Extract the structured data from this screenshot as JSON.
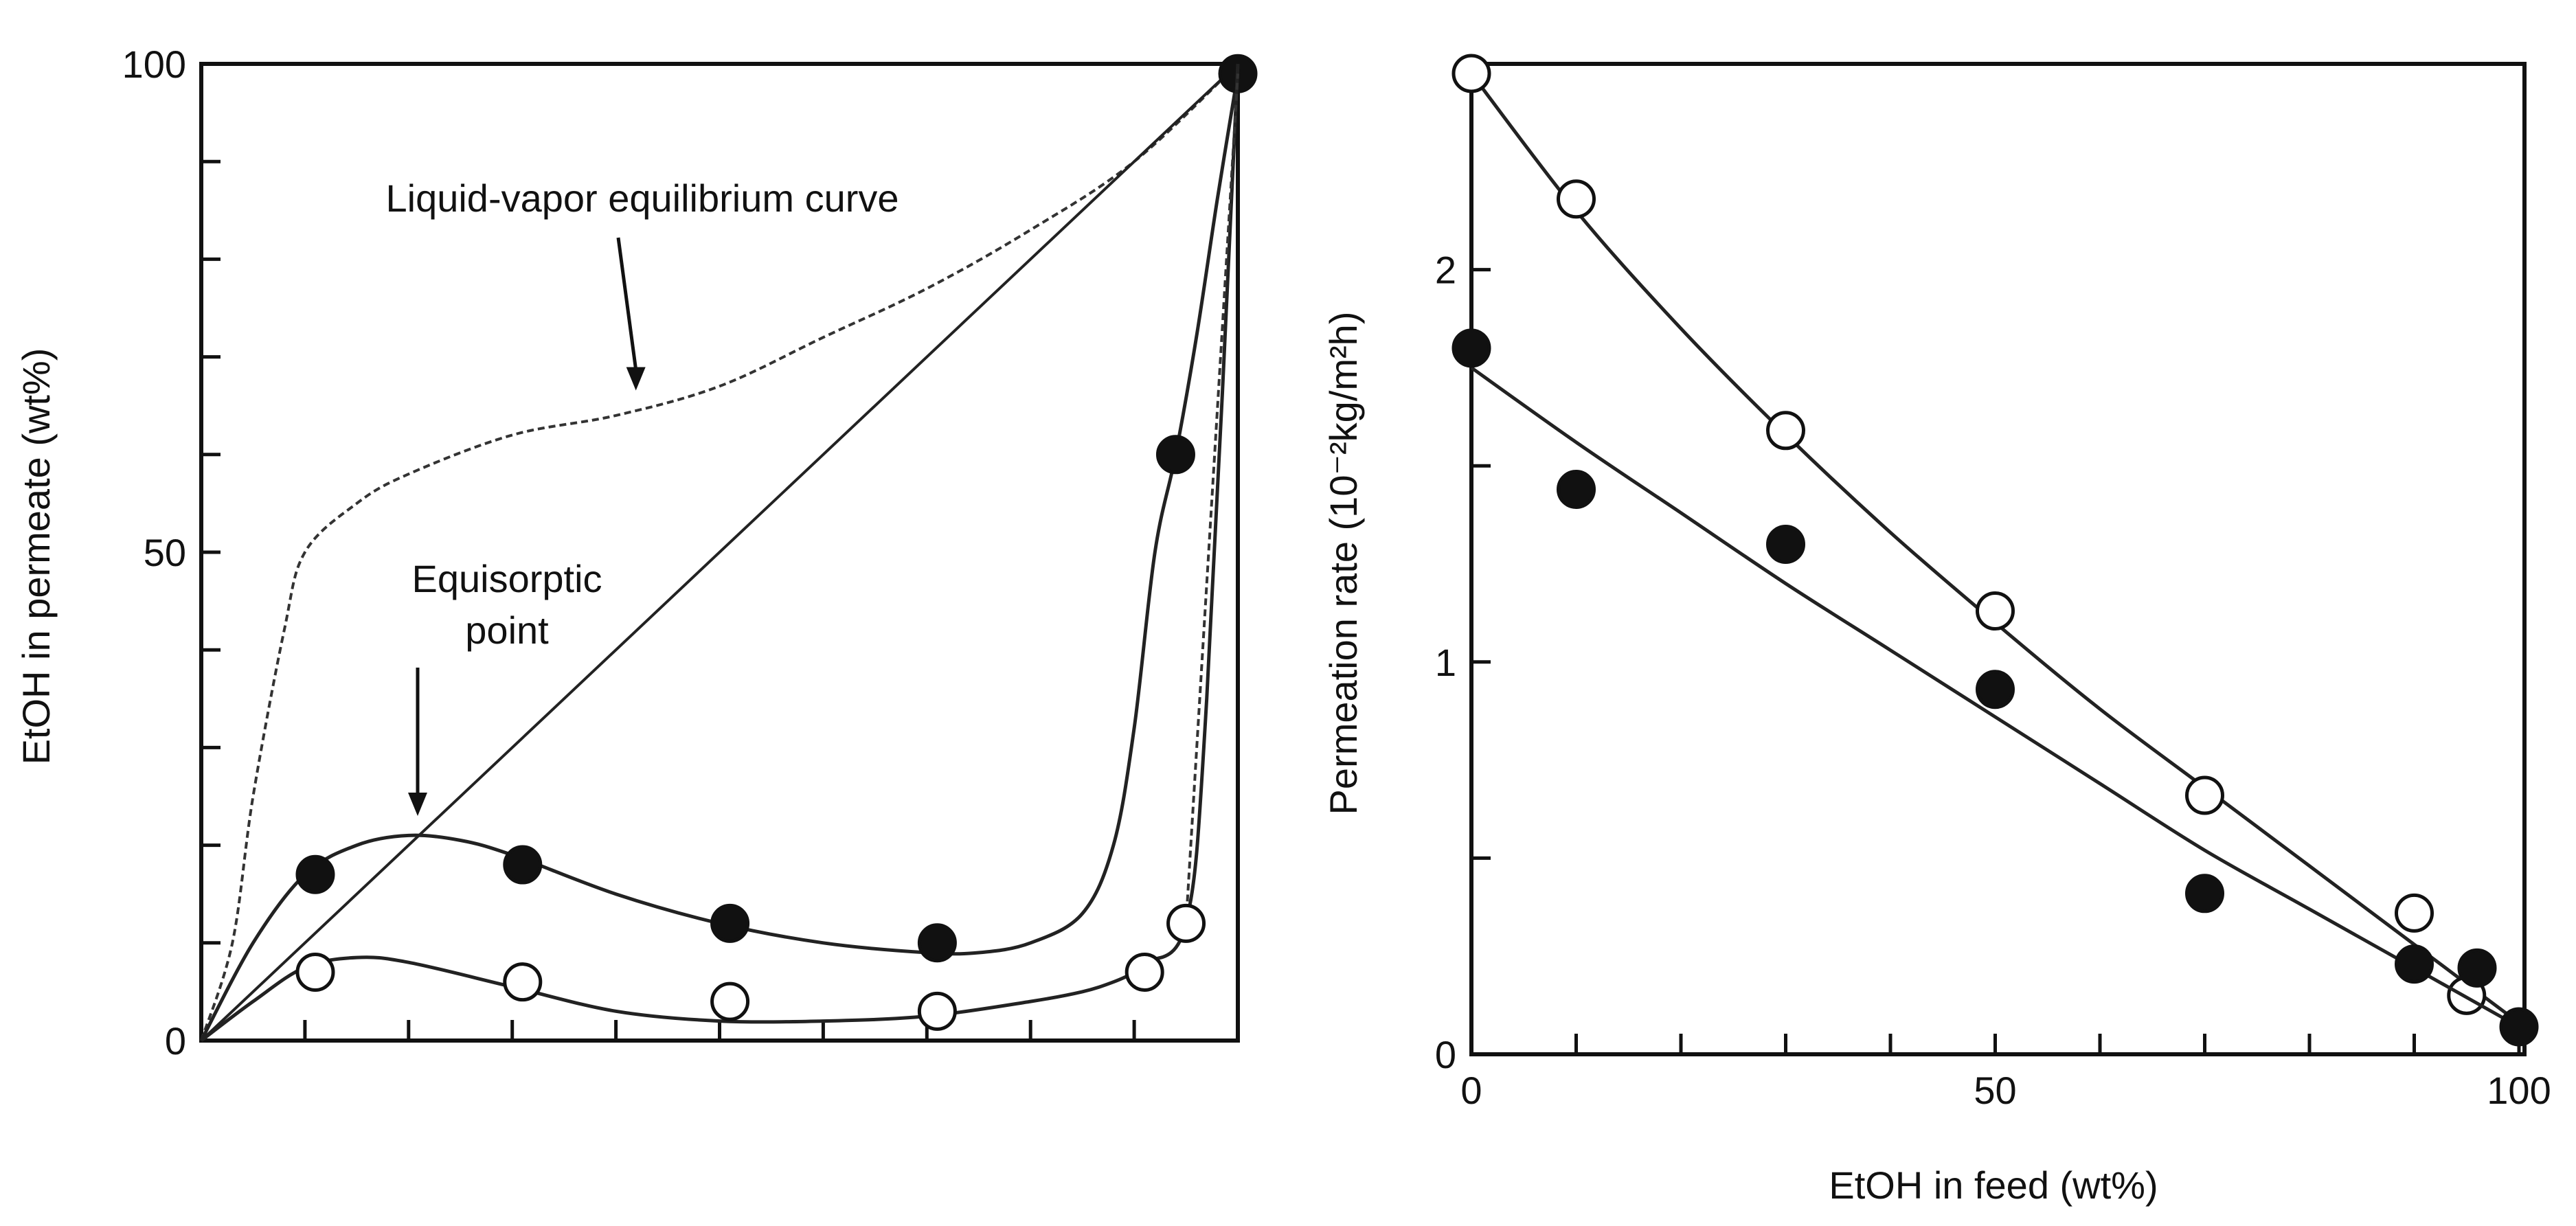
{
  "chart_data": [
    {
      "type": "scatter",
      "title": "",
      "xlabel": "",
      "ylabel": "EtOH in permeate (wt%)",
      "xlim": [
        0,
        100
      ],
      "ylim": [
        0,
        100
      ],
      "x_ticks": [
        10,
        20,
        30,
        40,
        50,
        60,
        70,
        80,
        90
      ],
      "y_ticks": [
        0,
        10,
        20,
        30,
        40,
        50,
        60,
        70,
        80,
        90,
        100
      ],
      "y_tick_labels": [
        {
          "value": 0,
          "label": "0"
        },
        {
          "value": 50,
          "label": "50"
        },
        {
          "value": 100,
          "label": "100"
        }
      ],
      "grid": false,
      "reference_lines": [
        {
          "name": "Liquid-vapor equilibrium curve",
          "style": "dashed",
          "x": [
            0,
            3,
            5,
            8,
            10,
            15,
            20,
            30,
            40,
            50,
            60,
            70,
            80,
            90,
            100
          ],
          "y": [
            0,
            10,
            25,
            42,
            50,
            55,
            58,
            62,
            64,
            67,
            72,
            77,
            83,
            90,
            100
          ]
        },
        {
          "name": "diagonal",
          "style": "solid",
          "x": [
            0,
            100
          ],
          "y": [
            0,
            100
          ]
        }
      ],
      "series": [
        {
          "marker": "filled",
          "points": [
            {
              "x": 11,
              "y": 17
            },
            {
              "x": 31,
              "y": 18
            },
            {
              "x": 51,
              "y": 12
            },
            {
              "x": 71,
              "y": 10
            },
            {
              "x": 94,
              "y": 60
            },
            {
              "x": 100,
              "y": 99
            }
          ],
          "curve_x": [
            0,
            5,
            10,
            15,
            20,
            25,
            30,
            40,
            50,
            60,
            70,
            75,
            80,
            85,
            88,
            90,
            92,
            94,
            96,
            98,
            100
          ],
          "curve_y": [
            0,
            10,
            17,
            20,
            21,
            20.5,
            19,
            15,
            12,
            10,
            9,
            9,
            10,
            13,
            20,
            32,
            50,
            60,
            72,
            86,
            99
          ]
        },
        {
          "marker": "open",
          "points": [
            {
              "x": 11,
              "y": 7
            },
            {
              "x": 31,
              "y": 6
            },
            {
              "x": 51,
              "y": 4
            },
            {
              "x": 71,
              "y": 3
            },
            {
              "x": 91,
              "y": 7
            },
            {
              "x": 95,
              "y": 12
            }
          ],
          "curve_x": [
            0,
            5,
            10,
            15,
            20,
            30,
            40,
            50,
            60,
            70,
            80,
            85,
            88,
            90,
            91,
            95,
            97,
            100
          ],
          "curve_y": [
            0,
            4,
            7.5,
            8.5,
            8,
            5.5,
            3,
            2,
            2,
            2.5,
            4,
            5,
            6,
            7,
            8,
            12,
            35,
            100
          ]
        }
      ],
      "annotations": [
        {
          "text": "Liquid-vapor equilibrium curve",
          "arrow_to": {
            "x": 41,
            "y": 66
          }
        },
        {
          "text_lines": [
            "Equisorptic",
            "point"
          ],
          "arrow_to": {
            "x": 21,
            "y": 22
          }
        }
      ]
    },
    {
      "type": "scatter",
      "title": "",
      "xlabel": "EtOH in feed (wt%)",
      "ylabel": "Permeation rate (10⁻²kg/m²h)",
      "xlim": [
        0,
        100
      ],
      "ylim": [
        0,
        2.5
      ],
      "x_ticks": [
        0,
        10,
        20,
        30,
        40,
        50,
        60,
        70,
        80,
        90,
        100
      ],
      "x_tick_labels": [
        {
          "value": 0,
          "label": "0"
        },
        {
          "value": 50,
          "label": "50"
        },
        {
          "value": 100,
          "label": "100"
        }
      ],
      "y_ticks": [
        0,
        0.5,
        1,
        1.5,
        2
      ],
      "y_tick_labels": [
        {
          "value": 0,
          "label": "0"
        },
        {
          "value": 1,
          "label": "1"
        },
        {
          "value": 2,
          "label": "2"
        }
      ],
      "grid": false,
      "series": [
        {
          "marker": "open",
          "points": [
            {
              "x": 0,
              "y": 2.5
            },
            {
              "x": 10,
              "y": 2.18
            },
            {
              "x": 30,
              "y": 1.59
            },
            {
              "x": 50,
              "y": 1.13
            },
            {
              "x": 70,
              "y": 0.66
            },
            {
              "x": 90,
              "y": 0.36
            },
            {
              "x": 95,
              "y": 0.15
            }
          ],
          "curve_x": [
            0,
            10,
            20,
            30,
            40,
            50,
            60,
            70,
            80,
            90,
            100
          ],
          "curve_y": [
            2.5,
            2.15,
            1.85,
            1.58,
            1.33,
            1.1,
            0.88,
            0.68,
            0.48,
            0.28,
            0.08
          ]
        },
        {
          "marker": "filled",
          "points": [
            {
              "x": 0,
              "y": 1.8
            },
            {
              "x": 10,
              "y": 1.44
            },
            {
              "x": 30,
              "y": 1.3
            },
            {
              "x": 50,
              "y": 0.93
            },
            {
              "x": 70,
              "y": 0.41
            },
            {
              "x": 90,
              "y": 0.23
            },
            {
              "x": 96,
              "y": 0.22
            },
            {
              "x": 100,
              "y": 0.07
            }
          ],
          "curve_x": [
            0,
            10,
            20,
            30,
            40,
            50,
            60,
            70,
            80,
            90,
            100
          ],
          "curve_y": [
            1.75,
            1.56,
            1.38,
            1.2,
            1.03,
            0.86,
            0.69,
            0.52,
            0.37,
            0.22,
            0.07
          ]
        }
      ]
    }
  ]
}
